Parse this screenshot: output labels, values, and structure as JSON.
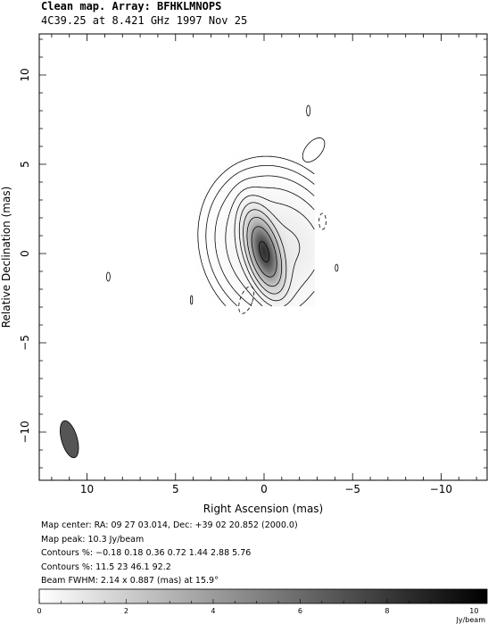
{
  "header": {
    "line1": "Clean map.  Array: BFHKLMNOPS",
    "line2": "4C39.25 at 8.421 GHz 1997 Nov 25"
  },
  "info": {
    "map_center": "Map center:  RA: 09 27 03.014,  Dec: +39 02 20.852 (2000.0)",
    "map_peak": "Map peak: 10.3 Jy/beam",
    "contours1": "Contours %: −0.18 0.18 0.36 0.72 1.44 2.88 5.76",
    "contours2": "Contours %: 11.5 23 46.1 92.2",
    "beam": "Beam FWHM: 2.14 x 0.887 (mas) at 15.9°"
  },
  "chart_data": {
    "type": "heatmap",
    "title": "4C39.25 at 8.421 GHz 1997 Nov 25",
    "xlabel": "Right Ascension  (mas)",
    "ylabel": "Relative Declination  (mas)",
    "xlim": [
      12.7,
      -12.6
    ],
    "ylim": [
      -12.7,
      12.3
    ],
    "xticks": [
      10,
      5,
      0,
      -5,
      -10
    ],
    "xtick_labels": [
      "10",
      "5",
      "0",
      "−5",
      "−10"
    ],
    "yticks": [
      -10,
      -5,
      0,
      5,
      10
    ],
    "ytick_labels": [
      "−10",
      "−5",
      "0",
      "5",
      "10"
    ],
    "map_peak_jy_per_beam": 10.3,
    "contour_levels_percent": [
      -0.18,
      0.18,
      0.36,
      0.72,
      1.44,
      2.88,
      5.76,
      11.5,
      23,
      46.1,
      92.2
    ],
    "source_components": [
      {
        "ra": 0.0,
        "dec": 0.1,
        "a": 0.45,
        "b": 1.1,
        "pa_deg": 16,
        "amp": 1.0
      },
      {
        "ra": -0.6,
        "dec": 0.5,
        "a": 1.6,
        "b": 1.9,
        "pa_deg": 20,
        "amp": 0.06
      },
      {
        "ra": -2.2,
        "dec": 0.4,
        "a": 1.0,
        "b": 1.3,
        "pa_deg": 20,
        "amp": 0.016
      },
      {
        "ra": -1.0,
        "dec": -1.7,
        "a": 1.2,
        "b": 0.8,
        "pa_deg": 120,
        "amp": 0.012
      }
    ],
    "negative_contours": [
      {
        "ra": 1.0,
        "dec": -2.6,
        "a": 0.35,
        "b": 0.8,
        "pa_deg": 20
      },
      {
        "ra": -3.3,
        "dec": 1.8,
        "a": 0.2,
        "b": 0.45,
        "pa_deg": 0
      }
    ],
    "weak_islands": [
      {
        "ra": -2.8,
        "dec": 5.8,
        "a": 0.45,
        "b": 0.8,
        "pa_deg": 40
      },
      {
        "ra": -2.5,
        "dec": 8.0,
        "a": 0.1,
        "b": 0.3,
        "pa_deg": 0
      },
      {
        "ra": -4.1,
        "dec": -0.8,
        "a": 0.08,
        "b": 0.2,
        "pa_deg": 0
      },
      {
        "ra": 8.8,
        "dec": -1.3,
        "a": 0.1,
        "b": 0.25,
        "pa_deg": 0
      },
      {
        "ra": 4.1,
        "dec": -2.6,
        "a": 0.06,
        "b": 0.25,
        "pa_deg": 0
      }
    ],
    "beam": {
      "ra": 11.0,
      "dec": -10.4,
      "major_mas": 2.14,
      "minor_mas": 0.887,
      "pa_deg": 15.9
    },
    "colorbar": {
      "min": 0,
      "max": 10.3,
      "ticks": [
        0,
        2,
        4,
        6,
        8,
        10
      ],
      "tick_labels": [
        "0",
        "2",
        "4",
        "6",
        "8",
        "10"
      ],
      "unit": "Jy/beam",
      "colors": {
        "low": "#ffffff",
        "high": "#000000"
      }
    }
  }
}
